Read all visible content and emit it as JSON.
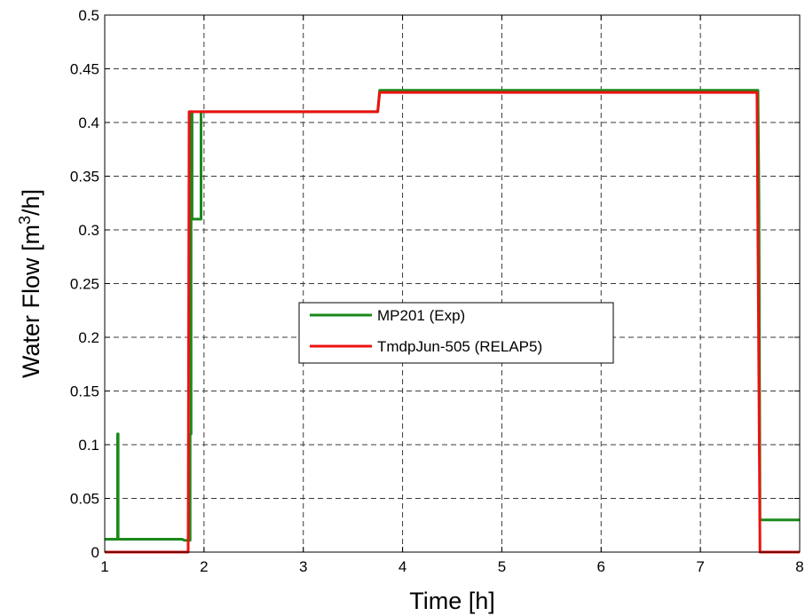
{
  "chart_data": {
    "type": "line",
    "xlabel": "Time [h]",
    "ylabel_prefix": "Water Flow [m",
    "ylabel_sup": "3",
    "ylabel_suffix": "/h]",
    "xlim": [
      1,
      8
    ],
    "ylim": [
      0,
      0.5
    ],
    "x_ticks": [
      "1",
      "2",
      "3",
      "4",
      "5",
      "6",
      "7",
      "8"
    ],
    "y_ticks": [
      "0",
      "0.05",
      "0.1",
      "0.15",
      "0.2",
      "0.25",
      "0.3",
      "0.35",
      "0.4",
      "0.45",
      "0.5"
    ],
    "grid": true,
    "legend_placement": "center",
    "series": [
      {
        "name": "MP201 (Exp)",
        "color": "#1a8a1a",
        "points": [
          [
            1.0,
            0.012
          ],
          [
            1.13,
            0.012
          ],
          [
            1.13,
            0.11
          ],
          [
            1.135,
            0.11
          ],
          [
            1.135,
            0.012
          ],
          [
            1.78,
            0.012
          ],
          [
            1.8,
            0.011
          ],
          [
            1.86,
            0.011
          ],
          [
            1.86,
            0.11
          ],
          [
            1.87,
            0.11
          ],
          [
            1.87,
            0.41
          ],
          [
            1.88,
            0.41
          ],
          [
            1.88,
            0.31
          ],
          [
            1.97,
            0.31
          ],
          [
            1.97,
            0.41
          ],
          [
            3.75,
            0.41
          ],
          [
            3.77,
            0.43
          ],
          [
            7.55,
            0.43
          ],
          [
            7.58,
            0.43
          ],
          [
            7.59,
            0.33
          ],
          [
            7.6,
            0.03
          ],
          [
            8.0,
            0.03
          ]
        ]
      },
      {
        "name": "TmdpJun-505 (RELAP5)",
        "color": "#ee1111",
        "points": [
          [
            1.0,
            0.0
          ],
          [
            1.84,
            0.0
          ],
          [
            1.85,
            0.41
          ],
          [
            3.75,
            0.41
          ],
          [
            3.77,
            0.428
          ],
          [
            7.57,
            0.428
          ],
          [
            7.6,
            0.0
          ],
          [
            8.0,
            0.0
          ]
        ]
      }
    ]
  }
}
